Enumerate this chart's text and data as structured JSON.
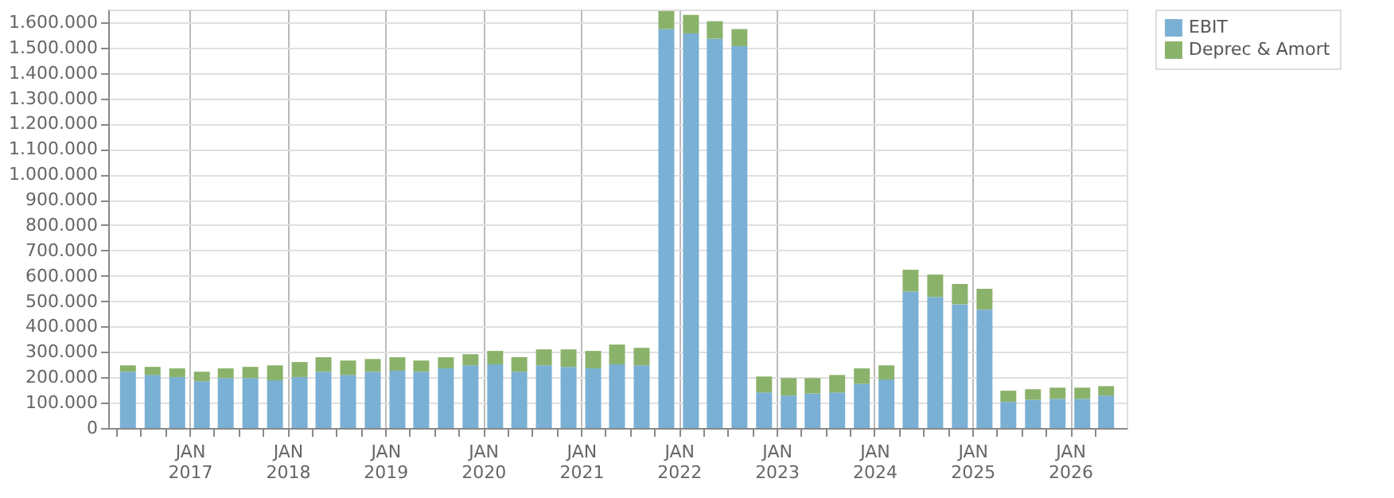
{
  "chart_data": {
    "type": "bar",
    "stacked": true,
    "x": [
      "2016-05-15",
      "2016-08-15",
      "2016-11-15",
      "2017-02-15",
      "2017-05-15",
      "2017-08-15",
      "2017-11-15",
      "2018-02-15",
      "2018-05-15",
      "2018-08-15",
      "2018-11-15",
      "2019-02-15",
      "2019-05-15",
      "2019-08-15",
      "2019-11-15",
      "2020-02-15",
      "2020-05-15",
      "2020-08-15",
      "2020-11-15",
      "2021-02-15",
      "2021-05-15",
      "2021-08-15",
      "2021-11-15",
      "2022-02-15",
      "2022-05-15",
      "2022-08-15",
      "2022-11-15",
      "2023-02-15",
      "2023-05-15",
      "2023-08-15",
      "2023-11-15",
      "2024-02-15",
      "2024-05-15",
      "2024-08-15",
      "2024-11-15",
      "2025-02-15",
      "2025-05-15",
      "2025-08-15",
      "2025-11-15",
      "2026-02-15",
      "2026-05-15"
    ],
    "series": [
      {
        "name": "EBIT",
        "color": "#7ab0d4",
        "values": [
          222000,
          209000,
          201000,
          184000,
          197000,
          197000,
          188000,
          201000,
          222000,
          209000,
          222000,
          226000,
          222000,
          235000,
          247000,
          251000,
          222000,
          247000,
          241000,
          235000,
          251000,
          247000,
          1573000,
          1556000,
          1535000,
          1506000,
          140000,
          128000,
          136000,
          140000,
          174000,
          191000,
          538000,
          517000,
          488000,
          467000,
          103000,
          111000,
          115000,
          115000,
          128000
        ]
      },
      {
        "name": "Deprec & Amort",
        "color": "#8bb26b",
        "values": [
          25000,
          32000,
          34000,
          38000,
          38000,
          44000,
          59000,
          59000,
          57000,
          57000,
          50000,
          53000,
          44000,
          44000,
          44000,
          53000,
          57000,
          63000,
          69000,
          69000,
          78000,
          69000,
          71000,
          73000,
          69000,
          67000,
          63000,
          69000,
          61000,
          69000,
          61000,
          56000,
          86000,
          88000,
          80000,
          82000,
          44000,
          42000,
          44000,
          44000,
          37000
        ]
      }
    ],
    "xlim": [
      "2016-04-01",
      "2026-07-01"
    ],
    "xticks": [
      {
        "value": "2016-04-01",
        "label": null
      },
      {
        "value": "2016-07-01",
        "label": null
      },
      {
        "value": "2016-10-01",
        "label": null
      },
      {
        "value": "2017-01-01",
        "label": "JAN 2017"
      },
      {
        "value": "2017-04-01",
        "label": null
      },
      {
        "value": "2017-07-01",
        "label": null
      },
      {
        "value": "2017-10-01",
        "label": null
      },
      {
        "value": "2018-01-01",
        "label": "JAN 2018"
      },
      {
        "value": "2018-04-01",
        "label": null
      },
      {
        "value": "2018-07-01",
        "label": null
      },
      {
        "value": "2018-10-01",
        "label": null
      },
      {
        "value": "2019-01-01",
        "label": "JAN 2019"
      },
      {
        "value": "2019-04-01",
        "label": null
      },
      {
        "value": "2019-07-01",
        "label": null
      },
      {
        "value": "2019-10-01",
        "label": null
      },
      {
        "value": "2020-01-01",
        "label": "JAN 2020"
      },
      {
        "value": "2020-04-01",
        "label": null
      },
      {
        "value": "2020-07-01",
        "label": null
      },
      {
        "value": "2020-10-01",
        "label": null
      },
      {
        "value": "2021-01-01",
        "label": "JAN 2021"
      },
      {
        "value": "2021-04-01",
        "label": null
      },
      {
        "value": "2021-07-01",
        "label": null
      },
      {
        "value": "2021-10-01",
        "label": null
      },
      {
        "value": "2022-01-01",
        "label": "JAN 2022"
      },
      {
        "value": "2022-04-01",
        "label": null
      },
      {
        "value": "2022-07-01",
        "label": null
      },
      {
        "value": "2022-10-01",
        "label": null
      },
      {
        "value": "2023-01-01",
        "label": "JAN 2023"
      },
      {
        "value": "2023-04-01",
        "label": null
      },
      {
        "value": "2023-07-01",
        "label": null
      },
      {
        "value": "2023-10-01",
        "label": null
      },
      {
        "value": "2024-01-01",
        "label": "JAN 2024"
      },
      {
        "value": "2024-04-01",
        "label": null
      },
      {
        "value": "2024-07-01",
        "label": null
      },
      {
        "value": "2024-10-01",
        "label": null
      },
      {
        "value": "2025-01-01",
        "label": "JAN 2025"
      },
      {
        "value": "2025-04-01",
        "label": null
      },
      {
        "value": "2025-07-01",
        "label": null
      },
      {
        "value": "2025-10-01",
        "label": null
      },
      {
        "value": "2026-01-01",
        "label": "JAN 2026"
      },
      {
        "value": "2026-04-01",
        "label": null
      }
    ],
    "ylim": [
      0,
      1650000
    ],
    "yticks": [
      {
        "value": 0,
        "label": "0"
      },
      {
        "value": 100000,
        "label": "100.000"
      },
      {
        "value": 200000,
        "label": "200.000"
      },
      {
        "value": 300000,
        "label": "300.000"
      },
      {
        "value": 400000,
        "label": "400.000"
      },
      {
        "value": 500000,
        "label": "500.000"
      },
      {
        "value": 600000,
        "label": "600.000"
      },
      {
        "value": 700000,
        "label": "700.000"
      },
      {
        "value": 800000,
        "label": "800.000"
      },
      {
        "value": 900000,
        "label": "900.000"
      },
      {
        "value": 1000000,
        "label": "1.000.000"
      },
      {
        "value": 1100000,
        "label": "1.100.000"
      },
      {
        "value": 1200000,
        "label": "1.200.000"
      },
      {
        "value": 1300000,
        "label": "1.300.000"
      },
      {
        "value": 1400000,
        "label": "1.400.000"
      },
      {
        "value": 1500000,
        "label": "1.500.000"
      },
      {
        "value": 1600000,
        "label": "1.600.000"
      }
    ],
    "grid": true,
    "legend": "top right"
  }
}
